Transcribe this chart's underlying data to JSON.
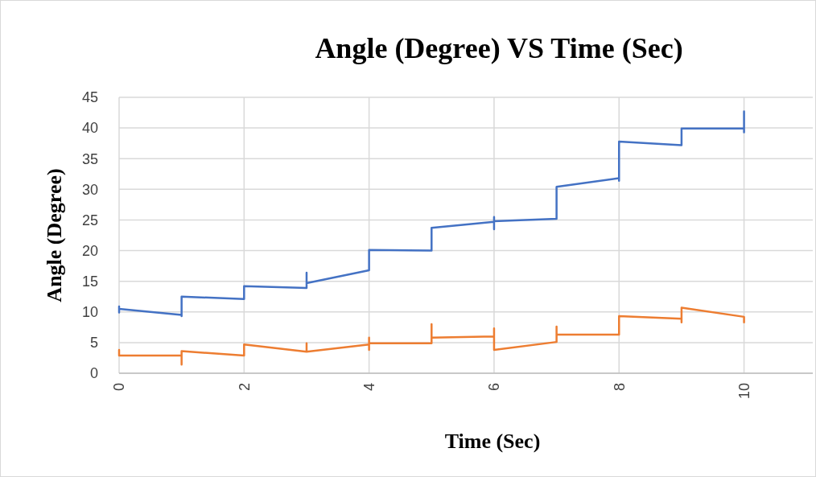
{
  "chart_data": {
    "type": "line",
    "title": "Angle (Degree) VS Time (Sec)",
    "xlabel": "Time (Sec)",
    "ylabel": "Angle (Degree)",
    "xlim": [
      0,
      11.1
    ],
    "xticks": [
      0,
      2,
      4,
      6,
      8,
      10
    ],
    "ylim": [
      0,
      45
    ],
    "yticks": [
      0,
      5,
      10,
      15,
      20,
      25,
      30,
      35,
      40,
      45
    ],
    "grid": true,
    "marker": "none",
    "line_style": "solid",
    "series": [
      {
        "color": "#4472c4",
        "x": [
          0,
          0,
          0,
          1,
          1,
          1,
          2,
          2,
          3,
          3,
          3,
          4,
          4,
          5,
          5,
          6,
          6,
          6,
          6,
          7,
          7,
          8,
          8,
          8,
          9,
          9,
          10,
          10,
          10
        ],
        "values": [
          10.9,
          9.9,
          10.5,
          9.5,
          9.3,
          12.5,
          12.1,
          14.2,
          13.9,
          16.4,
          14.7,
          16.8,
          20.1,
          20.0,
          23.7,
          24.7,
          25.5,
          23.5,
          24.8,
          25.2,
          30.4,
          31.8,
          31.4,
          37.8,
          37.2,
          39.9,
          39.9,
          42.7,
          39.3
        ]
      },
      {
        "color": "#ed7d31",
        "x": [
          0,
          0,
          1,
          1,
          1,
          2,
          2,
          3,
          3,
          3,
          4,
          4,
          4,
          4,
          5,
          5,
          5,
          6,
          6,
          6,
          7,
          7,
          7,
          8,
          8,
          9,
          9,
          9,
          10,
          10
        ],
        "values": [
          3.8,
          2.9,
          2.9,
          1.4,
          3.6,
          2.9,
          4.7,
          3.5,
          4.9,
          3.5,
          4.7,
          5.8,
          3.8,
          4.9,
          4.9,
          8.0,
          5.8,
          6.0,
          7.3,
          3.8,
          5.1,
          7.6,
          6.3,
          6.3,
          9.3,
          8.9,
          8.3,
          10.7,
          9.2,
          8.3
        ]
      }
    ]
  }
}
